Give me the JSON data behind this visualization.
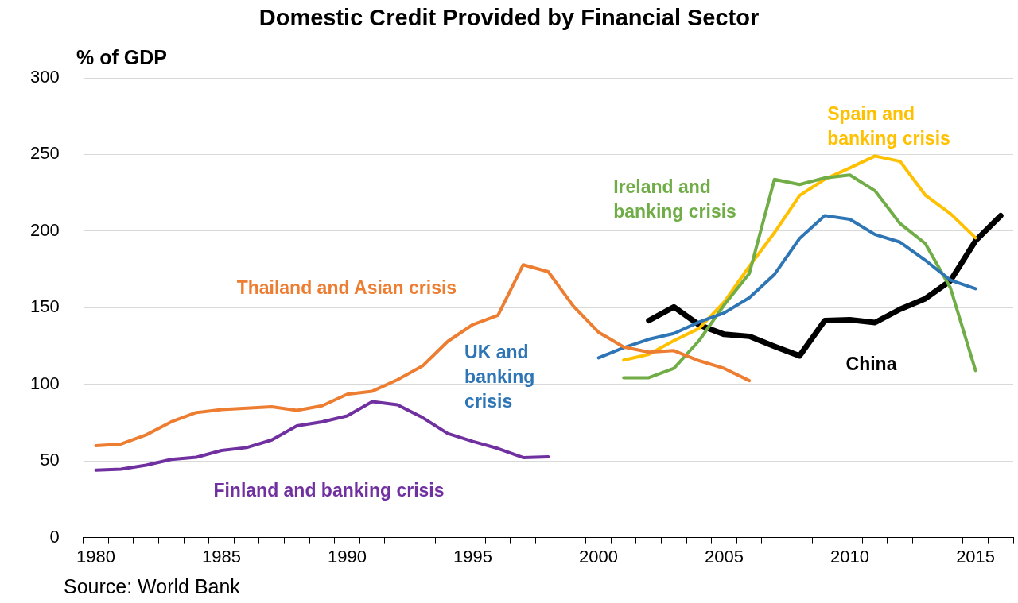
{
  "chart_data": {
    "type": "line",
    "title": "Domestic Credit Provided by Financial Sector",
    "ylabel": "% of GDP",
    "categories": [
      "1980",
      null,
      null,
      null,
      null,
      "1985",
      null,
      null,
      null,
      null,
      "1990",
      null,
      null,
      null,
      null,
      "1995",
      null,
      null,
      null,
      null,
      "2000",
      null,
      null,
      null,
      null,
      "2005",
      null,
      null,
      null,
      null,
      "2010",
      null,
      null,
      null,
      null,
      "2015",
      null
    ],
    "series": [
      {
        "name": "Thailand and Asian crisis",
        "color": "#ed7d31",
        "values": [
          60,
          61,
          67,
          75.5,
          81.6,
          83.5,
          84.4,
          85.3,
          83,
          86,
          93.5,
          95.5,
          103,
          112,
          128,
          139,
          145,
          178,
          173.5,
          151,
          134,
          124.4,
          121,
          122,
          115.4,
          110.4,
          102.4,
          null,
          null,
          null,
          null,
          null,
          null,
          null,
          null,
          null,
          null
        ]
      },
      {
        "name": "Finland and banking crisis",
        "color": "#7030a0",
        "values": [
          44,
          44.6,
          47.2,
          51,
          52.4,
          56.8,
          58.7,
          63.7,
          72.9,
          75.5,
          79.4,
          88.7,
          86.6,
          78.3,
          67.9,
          62.7,
          58.1,
          52.2,
          52.7,
          null,
          null,
          null,
          null,
          null,
          null,
          null,
          null,
          null,
          null,
          null,
          null,
          null,
          null,
          null,
          null,
          null,
          null
        ]
      },
      {
        "name": "UK and banking crisis",
        "color": "#2e75b6",
        "values": [
          null,
          null,
          null,
          null,
          null,
          null,
          null,
          null,
          null,
          null,
          null,
          null,
          null,
          null,
          null,
          null,
          null,
          null,
          null,
          null,
          117.3,
          123.9,
          129.4,
          133.2,
          140.6,
          146.6,
          156.5,
          171.7,
          195.2,
          210.1,
          207.7,
          197.8,
          192.8,
          181,
          168,
          162.4,
          null
        ]
      },
      {
        "name": "Ireland and banking crisis",
        "color": "#70ad47",
        "values": [
          null,
          null,
          null,
          null,
          null,
          null,
          null,
          null,
          null,
          null,
          null,
          null,
          null,
          null,
          null,
          null,
          null,
          null,
          null,
          null,
          null,
          104.3,
          104.3,
          110.4,
          128.5,
          151.8,
          172.3,
          233.8,
          230.4,
          234.7,
          236.6,
          226.3,
          204.9,
          191.9,
          163,
          109,
          null
        ]
      },
      {
        "name": "Spain and banking crisis",
        "color": "#ffc000",
        "values": [
          null,
          null,
          null,
          null,
          null,
          null,
          null,
          null,
          null,
          null,
          null,
          null,
          null,
          null,
          null,
          null,
          null,
          null,
          null,
          null,
          null,
          115.8,
          119.6,
          128.5,
          136.5,
          153.7,
          177,
          199,
          223.2,
          233.8,
          241.2,
          249,
          245.5,
          223.5,
          211.4,
          195.6,
          null
        ]
      },
      {
        "name": "China",
        "color": "#000000",
        "values": [
          null,
          null,
          null,
          null,
          null,
          null,
          null,
          null,
          null,
          null,
          null,
          null,
          null,
          null,
          null,
          null,
          null,
          null,
          null,
          null,
          null,
          null,
          141.6,
          150.5,
          138.8,
          132.6,
          131.3,
          124.8,
          118.6,
          141.6,
          142.1,
          140.3,
          149,
          155.9,
          167.6,
          193.7,
          210
        ]
      }
    ],
    "ylim": [
      0,
      300
    ],
    "yticks": [
      0,
      50,
      100,
      150,
      200,
      250,
      300
    ],
    "grid": "y",
    "legend": false,
    "marker": "none",
    "line_style": "solid",
    "annotations": [
      "Source: World Bank"
    ]
  }
}
